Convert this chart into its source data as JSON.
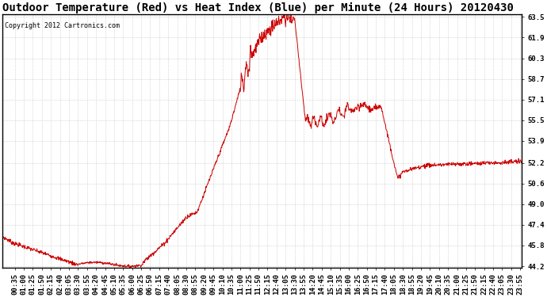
{
  "title": "Outdoor Temperature (Red) vs Heat Index (Blue) per Minute (24 Hours) 20120430",
  "copyright": "Copyright 2012 Cartronics.com",
  "y_min": 44.2,
  "y_max": 63.5,
  "y_ticks": [
    44.2,
    45.8,
    47.4,
    49.0,
    50.6,
    52.2,
    53.9,
    55.5,
    57.1,
    58.7,
    60.3,
    61.9,
    63.5
  ],
  "line_color": "#cc0000",
  "bg_color": "#ffffff",
  "grid_color": "#bbbbbb",
  "title_fontsize": 10,
  "tick_fontsize": 6.5,
  "copyright_fontsize": 6,
  "x_tick_interval": 25,
  "x_tick_start": 35
}
